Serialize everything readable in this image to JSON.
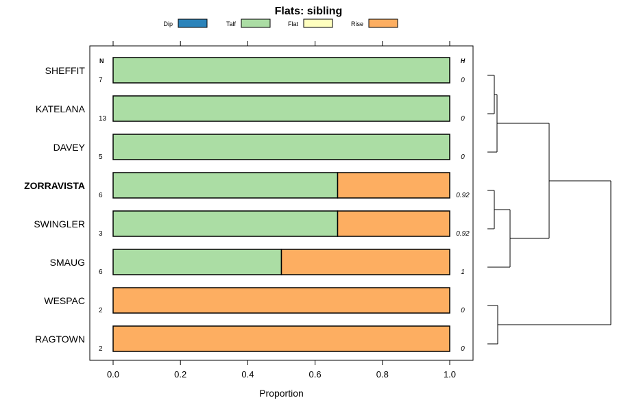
{
  "chart_data": {
    "type": "bar",
    "orientation": "horizontal",
    "stacked": true,
    "title": "Flats: sibling",
    "xlabel": "Proportion",
    "ylabel": "",
    "xlim": [
      0,
      1
    ],
    "x_ticks": [
      "0.0",
      "0.2",
      "0.4",
      "0.6",
      "0.8",
      "1.0"
    ],
    "legend_position": "top",
    "legend": [
      {
        "name": "Dip",
        "color": "#2b83ba"
      },
      {
        "name": "Talf",
        "color": "#abdda4"
      },
      {
        "name": "Flat",
        "color": "#ffffbf"
      },
      {
        "name": "Rise",
        "color": "#fdae61"
      }
    ],
    "n_header": "N",
    "h_header": "H",
    "categories": [
      "SHEFFIT",
      "KATELANA",
      "DAVEY",
      "ZORRAVISTA",
      "SWINGLER",
      "SMAUG",
      "WESPAC",
      "RAGTOWN"
    ],
    "highlighted_category": "ZORRAVISTA",
    "n": [
      "7",
      "13",
      "5",
      "6",
      "3",
      "6",
      "2",
      "2"
    ],
    "h": [
      "0",
      "0",
      "0",
      "0.92",
      "0.92",
      "1",
      "0",
      "0"
    ],
    "series": [
      {
        "name": "Dip",
        "values": [
          0,
          0,
          0,
          0,
          0,
          0,
          0,
          0
        ]
      },
      {
        "name": "Talf",
        "values": [
          1,
          1,
          1,
          0.667,
          0.667,
          0.5,
          0,
          0
        ]
      },
      {
        "name": "Flat",
        "values": [
          0,
          0,
          0,
          0,
          0,
          0,
          0,
          0
        ]
      },
      {
        "name": "Rise",
        "values": [
          0,
          0,
          0,
          0.333,
          0.333,
          0.5,
          1,
          1
        ]
      }
    ],
    "dendrogram": {
      "description_free": true,
      "merges": [
        [
          0,
          1
        ],
        [
          2,
          "m0"
        ],
        [
          3,
          4
        ],
        [
          5,
          "m2"
        ],
        [
          "m1",
          "m3"
        ],
        [
          6,
          7
        ],
        [
          "m4",
          "m5"
        ]
      ],
      "heights": [
        0.1,
        0.14,
        0.1,
        0.33,
        0.9,
        0.15,
        1.8
      ]
    }
  }
}
